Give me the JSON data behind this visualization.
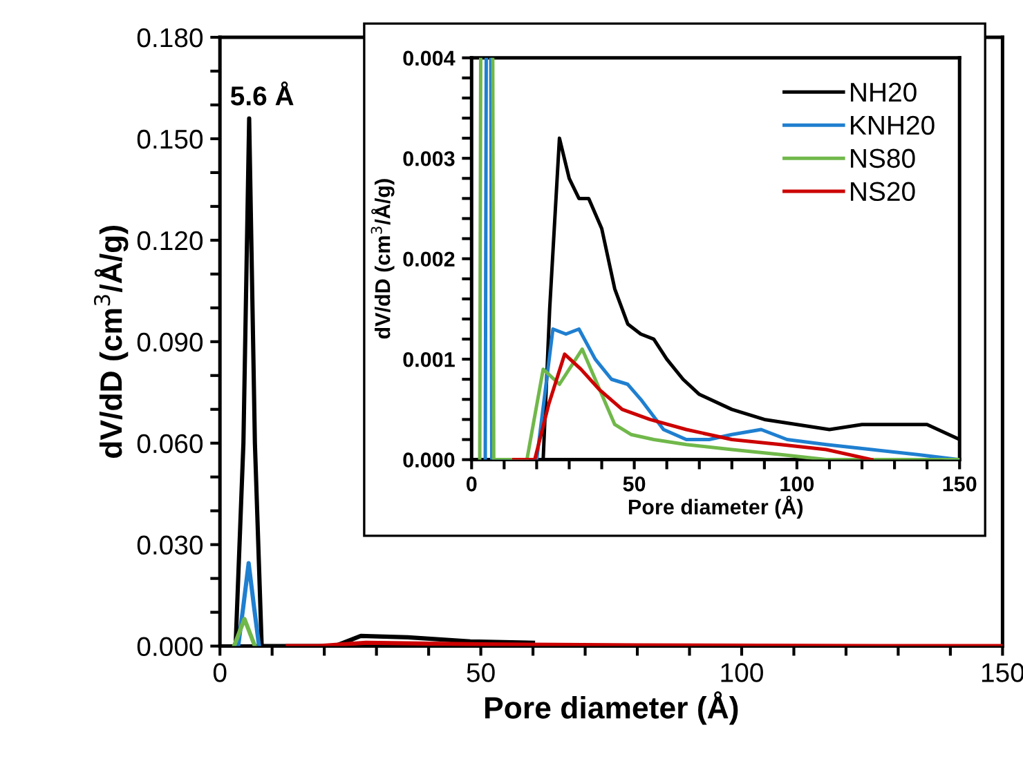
{
  "chart_data": [
    {
      "type": "line",
      "xlabel": "Pore diameter (Å)",
      "ylabel": "dV/dD (cm$^{3}$/Å/g)",
      "xlim": [
        0,
        150
      ],
      "ylim": [
        0,
        0.18
      ],
      "xticks": [
        0,
        {
          "value": 10,
          "label": null
        },
        {
          "value": 20,
          "label": null
        },
        {
          "value": 30,
          "label": null
        },
        {
          "value": 40,
          "label": null
        },
        50,
        {
          "value": 60,
          "label": null
        },
        {
          "value": 70,
          "label": null
        },
        {
          "value": 80,
          "label": null
        },
        {
          "value": 90,
          "label": null
        },
        100,
        {
          "value": 110,
          "label": null
        },
        {
          "value": 120,
          "label": null
        },
        {
          "value": 130,
          "label": null
        },
        {
          "value": 140,
          "label": null
        },
        150
      ],
      "yticks": [
        {
          "value": 0,
          "label": "0.000"
        },
        {
          "value": 0.01,
          "label": null
        },
        {
          "value": 0.02,
          "label": null
        },
        {
          "value": 0.03,
          "label": "0.030"
        },
        {
          "value": 0.04,
          "label": null
        },
        {
          "value": 0.05,
          "label": null
        },
        {
          "value": 0.06,
          "label": "0.060"
        },
        {
          "value": 0.07,
          "label": null
        },
        {
          "value": 0.08,
          "label": null
        },
        {
          "value": 0.09,
          "label": "0.090"
        },
        {
          "value": 0.1,
          "label": null
        },
        {
          "value": 0.11,
          "label": null
        },
        {
          "value": 0.12,
          "label": "0.120"
        },
        {
          "value": 0.13,
          "label": null
        },
        {
          "value": 0.14,
          "label": null
        },
        {
          "value": 0.15,
          "label": "0.150"
        },
        {
          "value": 0.16,
          "label": null
        },
        {
          "value": 0.17,
          "label": null
        },
        {
          "value": 0.18,
          "label": "0.180"
        }
      ],
      "annotations": [
        {
          "text": "5.6 Å",
          "x": 5.6,
          "y": 0.156
        }
      ],
      "series": [
        {
          "color": "#000000",
          "x": [
            3,
            4.5,
            5.6,
            6.7,
            8,
            22,
            27,
            36,
            48,
            60
          ],
          "values": [
            0,
            0.06,
            0.156,
            0.06,
            0,
            0,
            0.003,
            0.0026,
            0.0014,
            0.001
          ]
        },
        {
          "color": "#1f7fd0",
          "x": [
            3.5,
            4.5,
            5.5,
            6.5,
            7.5
          ],
          "values": [
            0,
            0.012,
            0.0245,
            0.012,
            0
          ]
        },
        {
          "color": "#70b84a",
          "x": [
            2.7,
            3.7,
            4.7,
            5.7,
            6.7
          ],
          "values": [
            0,
            0.004,
            0.008,
            0.004,
            0
          ]
        },
        {
          "color": "#cc0000",
          "x": [
            13,
            19,
            28,
            50,
            80,
            130,
            150
          ],
          "values": [
            0,
            0,
            0.001,
            0.0005,
            0.0002,
            0,
            0
          ]
        }
      ]
    },
    {
      "type": "line",
      "xlabel": "Pore diameter (Å)",
      "ylabel": "dV/dD (cm$^{3}$/Å/g)",
      "xlim": [
        0,
        150
      ],
      "ylim": [
        0,
        0.004
      ],
      "legend": "top right",
      "xticks": [
        0,
        {
          "value": 10,
          "label": null
        },
        {
          "value": 20,
          "label": null
        },
        {
          "value": 30,
          "label": null
        },
        {
          "value": 40,
          "label": null
        },
        50,
        {
          "value": 60,
          "label": null
        },
        {
          "value": 70,
          "label": null
        },
        {
          "value": 80,
          "label": null
        },
        {
          "value": 90,
          "label": null
        },
        100,
        {
          "value": 110,
          "label": null
        },
        {
          "value": 120,
          "label": null
        },
        {
          "value": 130,
          "label": null
        },
        {
          "value": 140,
          "label": null
        },
        150
      ],
      "yticks": [
        {
          "value": 0,
          "label": "0.000"
        },
        {
          "value": 0.0002,
          "label": null
        },
        {
          "value": 0.0004,
          "label": null
        },
        {
          "value": 0.0006,
          "label": null
        },
        {
          "value": 0.0008,
          "label": null
        },
        {
          "value": 0.001,
          "label": "0.001"
        },
        {
          "value": 0.0012,
          "label": null
        },
        {
          "value": 0.0014,
          "label": null
        },
        {
          "value": 0.0016,
          "label": null
        },
        {
          "value": 0.0018,
          "label": null
        },
        {
          "value": 0.002,
          "label": "0.002"
        },
        {
          "value": 0.0022,
          "label": null
        },
        {
          "value": 0.0024,
          "label": null
        },
        {
          "value": 0.0026,
          "label": null
        },
        {
          "value": 0.0028,
          "label": null
        },
        {
          "value": 0.003,
          "label": "0.003"
        },
        {
          "value": 0.0032,
          "label": null
        },
        {
          "value": 0.0034,
          "label": null
        },
        {
          "value": 0.0036,
          "label": null
        },
        {
          "value": 0.0038,
          "label": null
        },
        {
          "value": 0.004,
          "label": "0.004"
        }
      ],
      "series": [
        {
          "name": "NH20",
          "color": "#000000",
          "x": [
            22,
            24,
            27,
            30,
            33,
            36,
            40,
            44,
            48,
            52,
            56,
            60,
            65,
            70,
            80,
            90,
            100,
            110,
            120,
            130,
            140,
            150
          ],
          "values": [
            0,
            0.0015,
            0.0032,
            0.0028,
            0.0026,
            0.0026,
            0.0023,
            0.0017,
            0.00135,
            0.00125,
            0.0012,
            0.001,
            0.0008,
            0.00065,
            0.0005,
            0.0004,
            0.00035,
            0.0003,
            0.00035,
            0.00035,
            0.00035,
            0.0002
          ]
        },
        {
          "name": "KNH20",
          "color": "#1f7fd0",
          "x": [
            4.2,
            4.5,
            5,
            5.9,
            6.2,
            20,
            25,
            29,
            33,
            38,
            43,
            48,
            52,
            59,
            66,
            73,
            80,
            89,
            97,
            109,
            123,
            137,
            150
          ],
          "values": [
            0,
            0.004,
            null,
            0.004,
            0,
            0,
            0.0013,
            0.00125,
            0.0013,
            0.001,
            0.0008,
            0.00075,
            0.0006,
            0.0003,
            0.0002,
            0.0002,
            0.00025,
            0.0003,
            0.0002,
            0.00015,
            0.0001,
            5e-05,
            0
          ]
        },
        {
          "name": "NS80",
          "color": "#70b84a",
          "x": [
            2.5,
            2.8,
            4.7,
            6.5,
            6.8,
            17,
            22,
            27,
            34,
            38,
            44,
            49,
            56,
            66,
            80,
            95,
            109,
            123,
            150
          ],
          "values": [
            0,
            0.004,
            null,
            0.004,
            0,
            0,
            0.0009,
            0.00075,
            0.0011,
            0.0008,
            0.00035,
            0.00025,
            0.0002,
            0.00015,
            0.0001,
            5e-05,
            0,
            0,
            0
          ]
        },
        {
          "name": "NS20",
          "color": "#cc0000",
          "x": [
            13,
            19.4,
            23.7,
            28.6,
            33.6,
            39.2,
            46.3,
            54.8,
            66,
            80,
            95,
            109,
            123
          ],
          "values": [
            0,
            0,
            0.00055,
            0.00105,
            0.0009,
            0.0007,
            0.0005,
            0.0004,
            0.0003,
            0.0002,
            0.00015,
            0.0001,
            0
          ]
        }
      ]
    }
  ]
}
